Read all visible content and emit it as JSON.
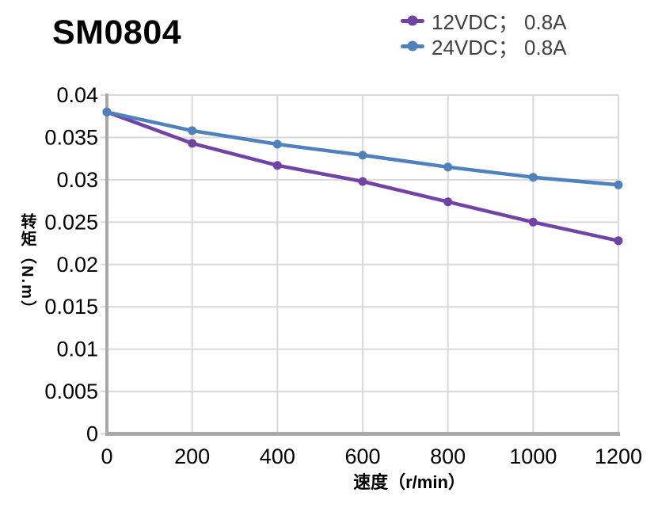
{
  "title": "SM0804",
  "chart_data": {
    "type": "line",
    "title": "SM0804",
    "xlabel": "速度（r/min）",
    "ylabel": "转矩（N.m）",
    "x": [
      0,
      200,
      400,
      600,
      800,
      1000,
      1200
    ],
    "series": [
      {
        "name": "12VDC； 0.8A",
        "color": "#7243A6",
        "values": [
          0.038,
          0.0343,
          0.0317,
          0.0298,
          0.0274,
          0.025,
          0.0228
        ]
      },
      {
        "name": "24VDC； 0.8A",
        "color": "#4F81BD",
        "values": [
          0.038,
          0.0358,
          0.0342,
          0.0329,
          0.0315,
          0.0303,
          0.0294
        ]
      }
    ],
    "xlim": [
      0,
      1200
    ],
    "ylim": [
      0,
      0.04
    ],
    "x_ticks": [
      "0",
      "200",
      "400",
      "600",
      "800",
      "1000",
      "1200"
    ],
    "y_ticks": [
      "0",
      "0.005",
      "0.01",
      "0.015",
      "0.02",
      "0.025",
      "0.03",
      "0.035",
      "0.04"
    ],
    "grid": true,
    "legend_position": "top-right",
    "marker": "circle",
    "colors": {
      "gridline": "#d9d9d9",
      "axis": "#a9a9a9",
      "tick_label": "#000000",
      "legend_text": "#404040",
      "title_text": "#000000"
    }
  }
}
